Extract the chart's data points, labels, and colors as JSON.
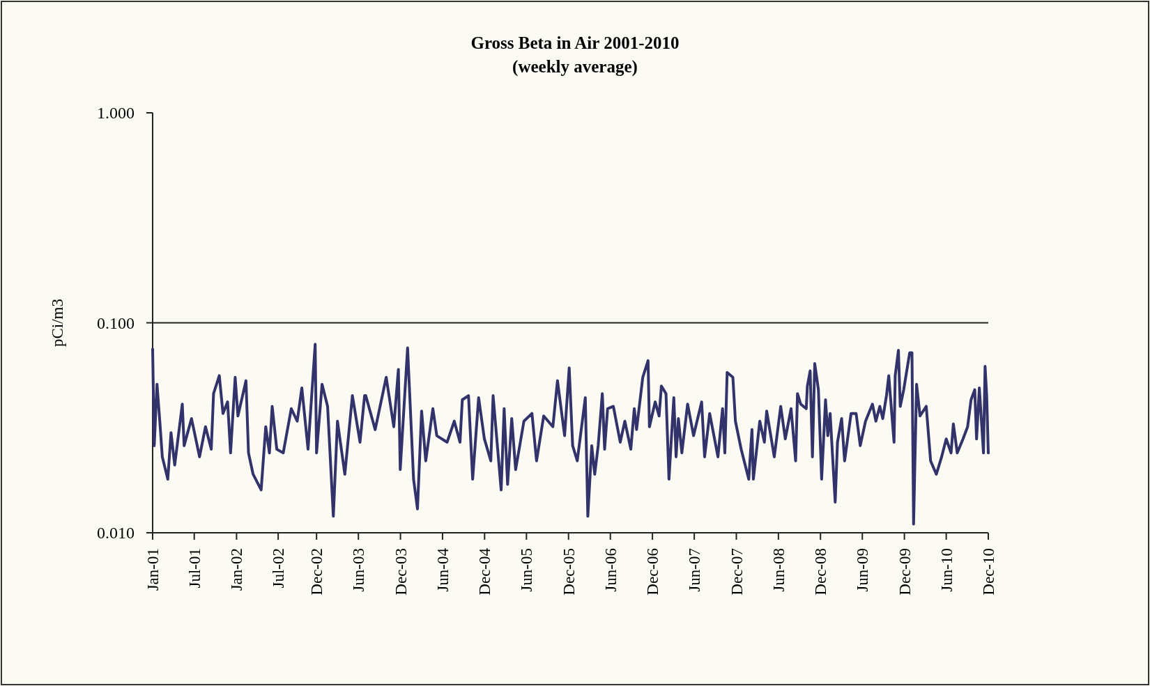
{
  "chart_data": {
    "type": "line",
    "title": "Gross Beta in Air 2001-2010",
    "subtitle": "(weekly average)",
    "ylabel": "pCi/m3",
    "log": true,
    "xlim": [
      "2001-01-01",
      "2010-12-15"
    ],
    "xticks": [
      {
        "value": "2001-01-01",
        "label": "Jan-01"
      },
      {
        "value": "2001-07-01",
        "label": "Jul-01"
      },
      {
        "value": "2002-01-01",
        "label": "Jan-02"
      },
      {
        "value": "2002-07-01",
        "label": "Jul-02"
      },
      {
        "value": "2002-12-15",
        "label": "Dec-02"
      },
      {
        "value": "2003-06-15",
        "label": "Jun-03"
      },
      {
        "value": "2003-12-15",
        "label": "Dec-03"
      },
      {
        "value": "2004-06-15",
        "label": "Jun-04"
      },
      {
        "value": "2004-12-15",
        "label": "Dec-04"
      },
      {
        "value": "2005-06-15",
        "label": "Jun-05"
      },
      {
        "value": "2005-12-15",
        "label": "Dec-05"
      },
      {
        "value": "2006-06-15",
        "label": "Jun-06"
      },
      {
        "value": "2006-12-15",
        "label": "Dec-06"
      },
      {
        "value": "2007-06-15",
        "label": "Jun-07"
      },
      {
        "value": "2007-12-15",
        "label": "Dec-07"
      },
      {
        "value": "2008-06-15",
        "label": "Jun-08"
      },
      {
        "value": "2008-12-15",
        "label": "Dec-08"
      },
      {
        "value": "2009-06-15",
        "label": "Jun-09"
      },
      {
        "value": "2009-12-15",
        "label": "Dec-09"
      },
      {
        "value": "2010-06-15",
        "label": "Jun-10"
      },
      {
        "value": "2010-12-15",
        "label": "Dec-10"
      }
    ],
    "ylim": [
      0.01,
      1
    ],
    "yticks": [
      {
        "value": 0.01,
        "label": "0.010"
      },
      {
        "value": 0.1,
        "label": "0.100"
      },
      {
        "value": 1,
        "label": "1.000"
      }
    ],
    "ref_lines": [
      {
        "axis": "y",
        "value": 0.1,
        "color": "#222222"
      }
    ],
    "x": [
      "2001-01-01",
      "2001-01-08",
      "2001-01-20",
      "2001-02-02",
      "2001-02-12",
      "2001-03-08",
      "2001-03-22",
      "2001-04-07",
      "2001-05-10",
      "2001-05-18",
      "2001-06-19",
      "2001-07-24",
      "2001-08-19",
      "2001-09-13",
      "2001-09-23",
      "2001-10-18",
      "2001-11-03",
      "2001-11-23",
      "2001-12-06",
      "2001-12-26",
      "2002-01-07",
      "2002-02-11",
      "2002-02-22",
      "2002-03-14",
      "2002-04-18",
      "2002-05-08",
      "2002-05-24",
      "2002-06-05",
      "2002-06-25",
      "2002-07-23",
      "2002-08-27",
      "2002-09-22",
      "2002-10-12",
      "2002-11-08",
      "2002-12-09",
      "2002-12-15",
      "2003-01-08",
      "2003-02-01",
      "2003-02-26",
      "2003-03-16",
      "2003-04-17",
      "2003-05-20",
      "2003-06-22",
      "2003-07-12",
      "2003-07-17",
      "2003-08-27",
      "2003-10-14",
      "2003-11-16",
      "2003-12-06",
      "2003-12-14",
      "2004-01-15",
      "2004-02-10",
      "2004-02-27",
      "2004-03-16",
      "2004-04-03",
      "2004-05-04",
      "2004-05-21",
      "2004-07-05",
      "2004-08-05",
      "2004-08-30",
      "2004-09-09",
      "2004-10-06",
      "2004-10-24",
      "2004-11-19",
      "2004-12-14",
      "2005-01-11",
      "2005-01-21",
      "2005-02-25",
      "2005-03-10",
      "2005-03-25",
      "2005-04-12",
      "2005-04-29",
      "2005-06-04",
      "2005-07-09",
      "2005-07-29",
      "2005-08-29",
      "2005-10-08",
      "2005-10-28",
      "2005-11-28",
      "2005-12-18",
      "2006-01-02",
      "2006-01-22",
      "2006-02-26",
      "2006-03-09",
      "2006-03-26",
      "2006-04-08",
      "2006-04-23",
      "2006-05-11",
      "2006-05-21",
      "2006-06-03",
      "2006-06-28",
      "2006-07-28",
      "2006-08-17",
      "2006-09-12",
      "2006-09-27",
      "2006-10-07",
      "2006-11-03",
      "2006-11-26",
      "2006-12-02",
      "2006-12-27",
      "2007-01-13",
      "2007-01-23",
      "2007-02-12",
      "2007-02-25",
      "2007-03-18",
      "2007-03-28",
      "2007-04-07",
      "2007-04-22",
      "2007-05-17",
      "2007-06-12",
      "2007-07-17",
      "2007-07-30",
      "2007-08-21",
      "2007-09-26",
      "2007-10-16",
      "2007-10-26",
      "2007-11-05",
      "2007-11-30",
      "2007-12-11",
      "2008-01-05",
      "2008-02-07",
      "2008-02-21",
      "2008-02-27",
      "2008-03-26",
      "2008-04-15",
      "2008-04-25",
      "2008-05-28",
      "2008-06-25",
      "2008-07-15",
      "2008-08-09",
      "2008-08-29",
      "2008-09-06",
      "2008-09-20",
      "2008-10-14",
      "2008-10-19",
      "2008-10-31",
      "2008-11-10",
      "2008-11-20",
      "2008-12-06",
      "2008-12-20",
      "2009-01-06",
      "2009-01-16",
      "2009-01-26",
      "2009-02-17",
      "2009-02-27",
      "2009-03-17",
      "2009-03-30",
      "2009-04-27",
      "2009-05-19",
      "2009-06-06",
      "2009-06-29",
      "2009-07-29",
      "2009-08-13",
      "2009-08-30",
      "2009-09-12",
      "2009-09-28",
      "2009-10-08",
      "2009-10-31",
      "2009-11-05",
      "2009-11-19",
      "2009-11-27",
      "2009-12-12",
      "2010-01-07",
      "2010-01-17",
      "2010-01-24",
      "2010-02-06",
      "2010-02-21",
      "2010-03-20",
      "2010-04-08",
      "2010-05-03",
      "2010-05-26",
      "2010-06-15",
      "2010-07-06",
      "2010-07-16",
      "2010-08-02",
      "2010-08-27",
      "2010-09-16",
      "2010-10-01",
      "2010-10-17",
      "2010-10-25",
      "2010-11-06",
      "2010-11-24",
      "2010-12-01",
      "2010-12-08",
      "2010-12-15"
    ],
    "series": [
      {
        "color": "#33336b",
        "values": [
          0.075,
          0.026,
          0.051,
          0.033,
          0.023,
          0.018,
          0.03,
          0.021,
          0.041,
          0.026,
          0.035,
          0.023,
          0.032,
          0.025,
          0.046,
          0.056,
          0.037,
          0.042,
          0.024,
          0.055,
          0.036,
          0.053,
          0.024,
          0.019,
          0.016,
          0.032,
          0.024,
          0.04,
          0.025,
          0.024,
          0.039,
          0.034,
          0.049,
          0.025,
          0.079,
          0.024,
          0.051,
          0.04,
          0.012,
          0.034,
          0.019,
          0.045,
          0.027,
          0.045,
          0.045,
          0.031,
          0.055,
          0.032,
          0.06,
          0.02,
          0.076,
          0.018,
          0.013,
          0.038,
          0.022,
          0.039,
          0.029,
          0.027,
          0.034,
          0.027,
          0.043,
          0.045,
          0.018,
          0.044,
          0.028,
          0.022,
          0.045,
          0.016,
          0.039,
          0.017,
          0.035,
          0.02,
          0.034,
          0.037,
          0.022,
          0.036,
          0.032,
          0.053,
          0.029,
          0.061,
          0.026,
          0.022,
          0.044,
          0.012,
          0.026,
          0.019,
          0.026,
          0.046,
          0.025,
          0.039,
          0.04,
          0.027,
          0.034,
          0.025,
          0.039,
          0.031,
          0.055,
          0.066,
          0.032,
          0.042,
          0.036,
          0.05,
          0.046,
          0.018,
          0.044,
          0.023,
          0.035,
          0.024,
          0.041,
          0.029,
          0.042,
          0.023,
          0.037,
          0.023,
          0.039,
          0.024,
          0.058,
          0.055,
          0.034,
          0.025,
          0.018,
          0.031,
          0.018,
          0.034,
          0.027,
          0.038,
          0.023,
          0.04,
          0.028,
          0.039,
          0.022,
          0.046,
          0.041,
          0.039,
          0.05,
          0.059,
          0.023,
          0.064,
          0.048,
          0.018,
          0.043,
          0.029,
          0.037,
          0.014,
          0.027,
          0.035,
          0.022,
          0.037,
          0.037,
          0.026,
          0.034,
          0.041,
          0.034,
          0.04,
          0.035,
          0.045,
          0.056,
          0.027,
          0.056,
          0.074,
          0.04,
          0.048,
          0.072,
          0.072,
          0.011,
          0.051,
          0.036,
          0.04,
          0.022,
          0.019,
          0.023,
          0.028,
          0.024,
          0.033,
          0.024,
          0.028,
          0.032,
          0.043,
          0.048,
          0.028,
          0.049,
          0.024,
          0.062,
          0.045,
          0.024
        ]
      }
    ]
  }
}
